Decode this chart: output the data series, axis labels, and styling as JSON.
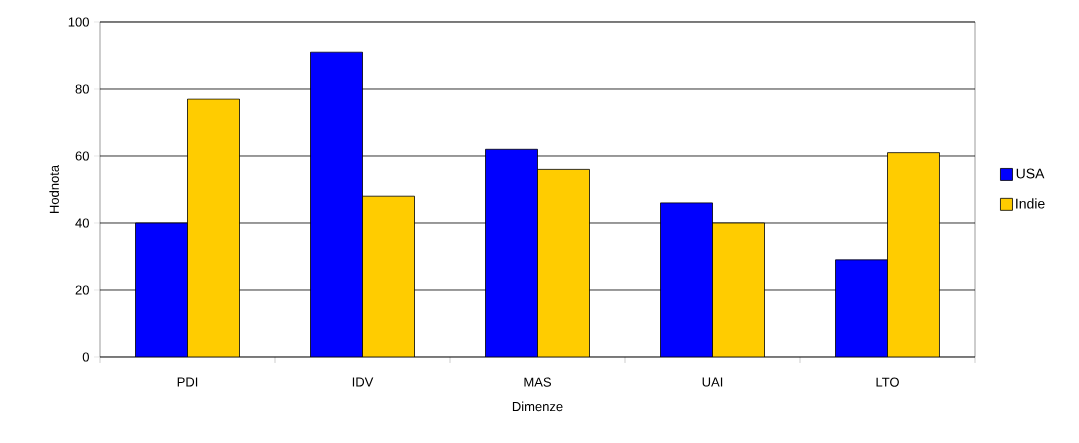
{
  "chart_data": {
    "type": "bar",
    "xlabel": "Dimenze",
    "ylabel": "Hodnota",
    "categories": [
      "PDI",
      "IDV",
      "MAS",
      "UAI",
      "LTO"
    ],
    "series": [
      {
        "name": "USA",
        "color": "#0000ff",
        "values": [
          40,
          91,
          62,
          46,
          29
        ]
      },
      {
        "name": "Indie",
        "color": "#ffcc00",
        "values": [
          77,
          48,
          56,
          40,
          61
        ]
      }
    ],
    "ylim": [
      0,
      100
    ],
    "yticks": [
      0,
      20,
      40,
      60,
      80,
      100
    ],
    "grid": "y",
    "legend": "right"
  }
}
